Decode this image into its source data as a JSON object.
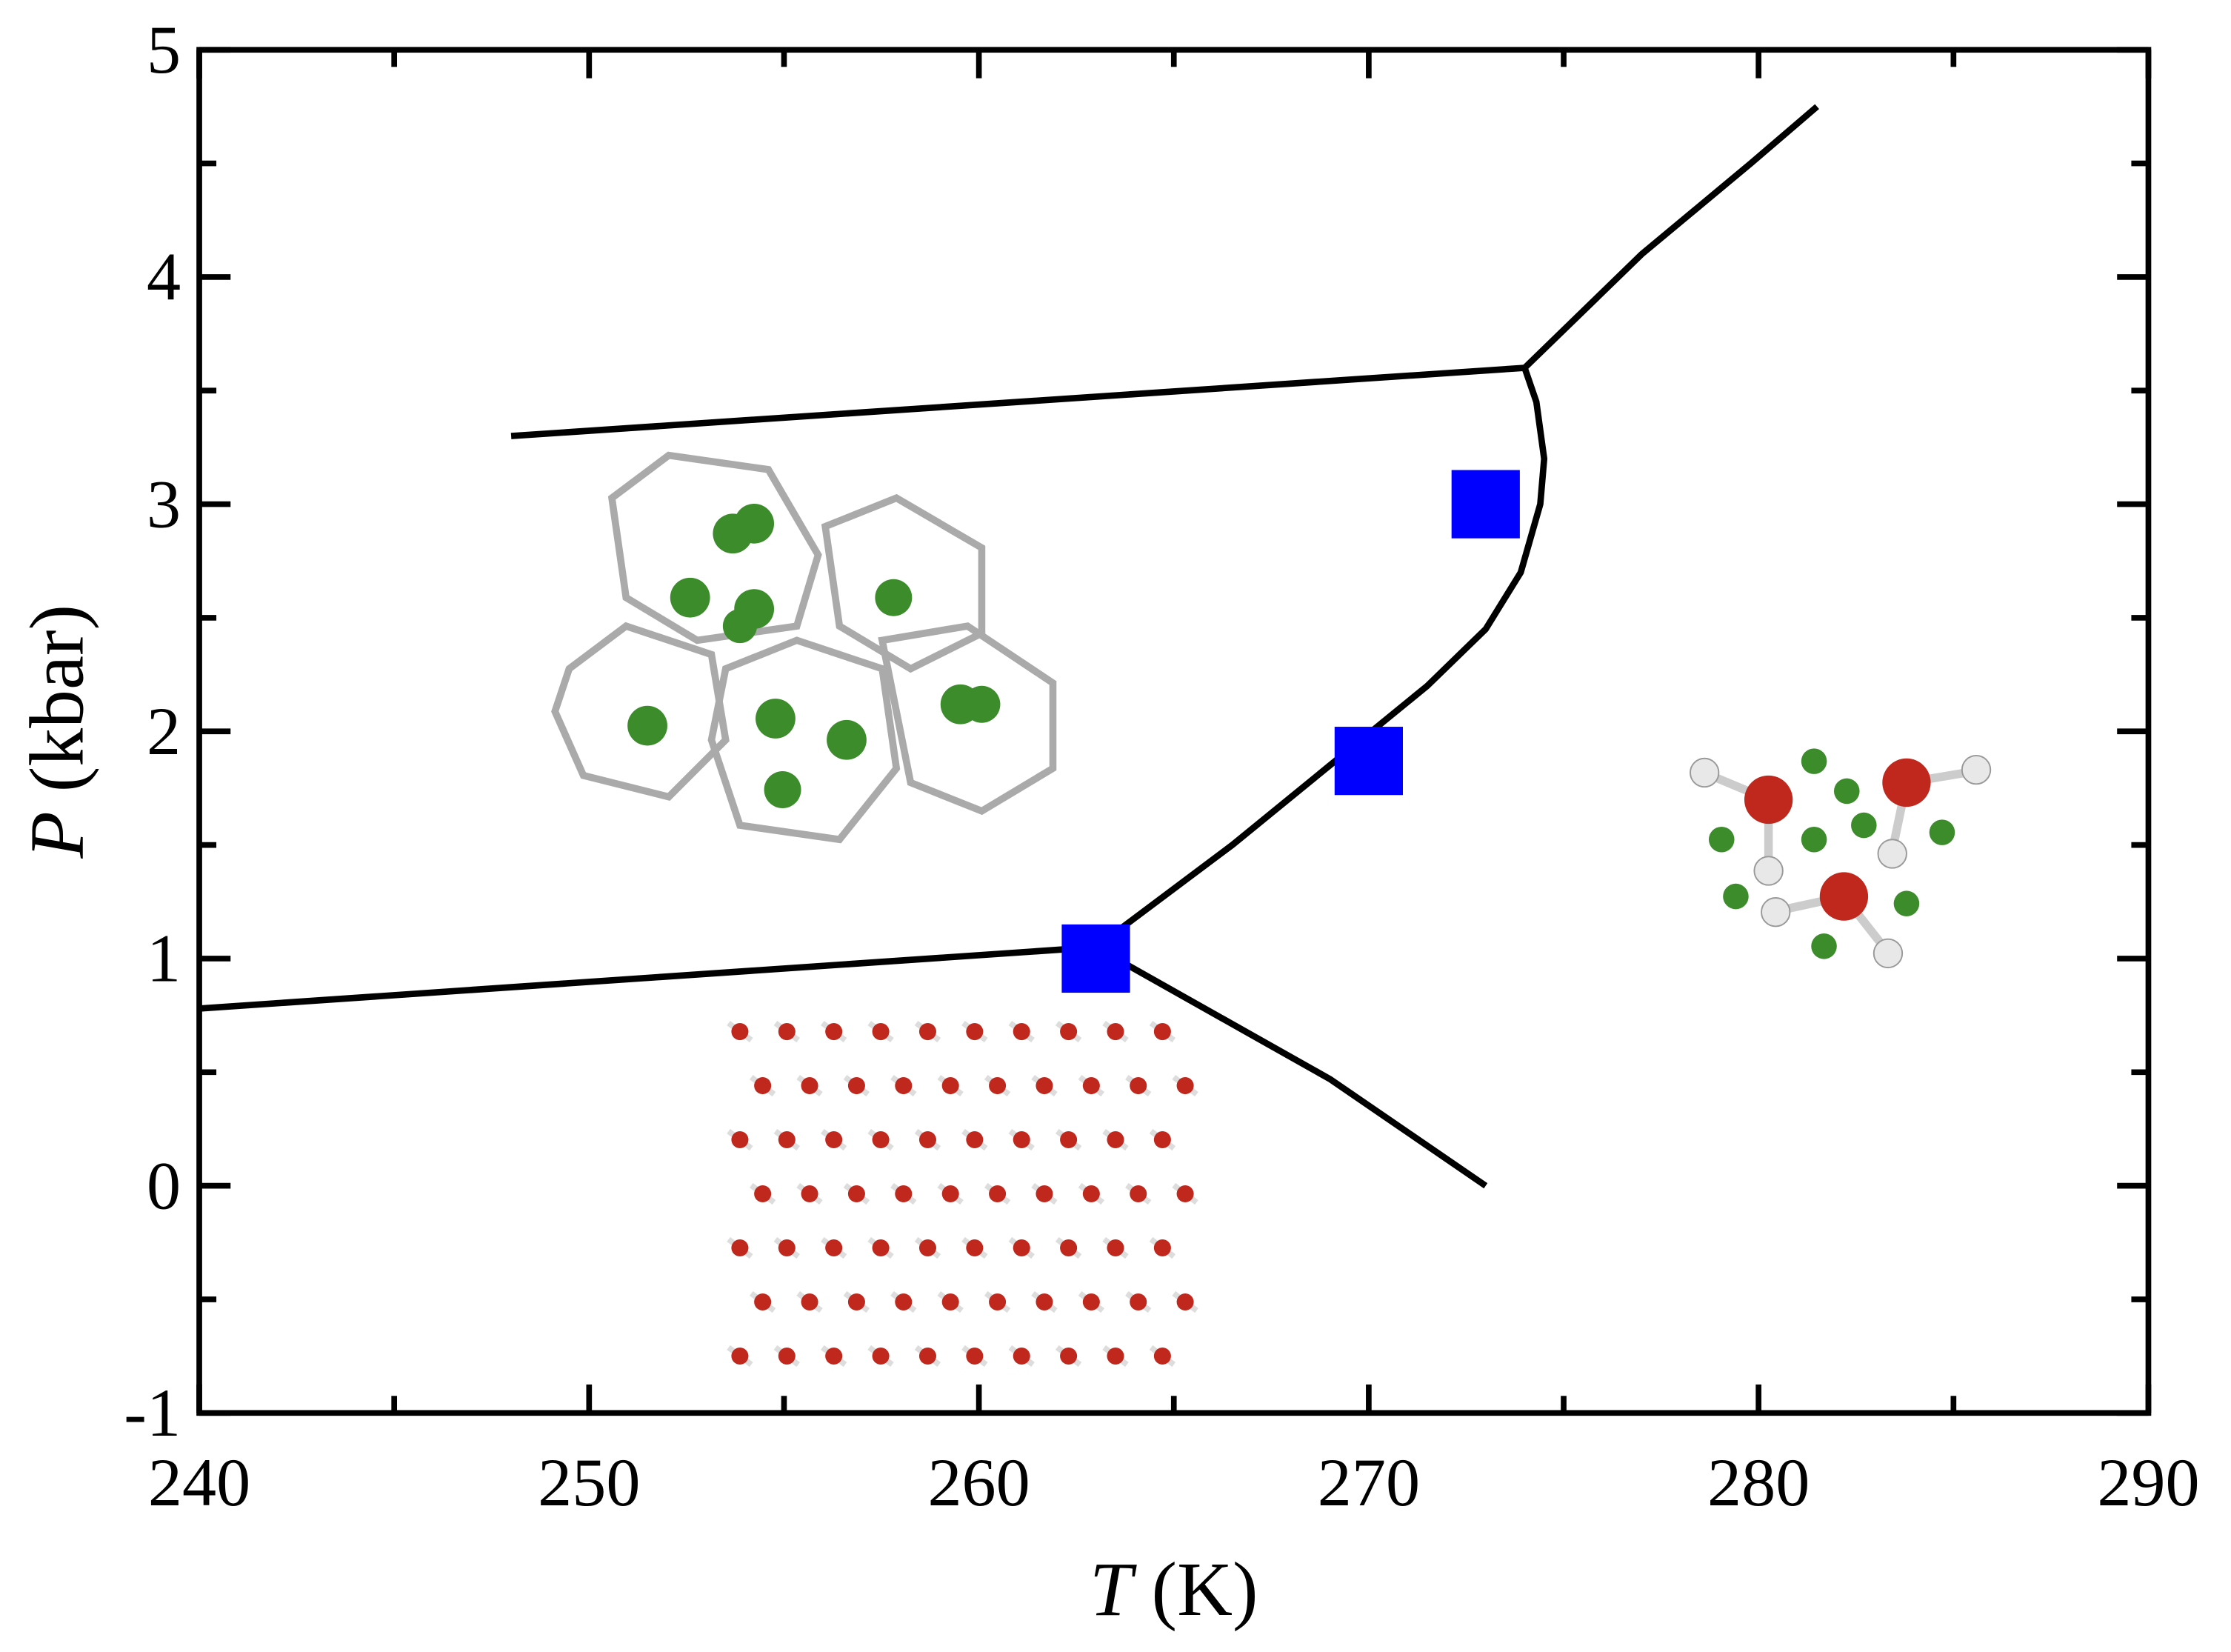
{
  "chart_data": {
    "type": "line",
    "xlabel": "T (K)",
    "ylabel": "P (kbar)",
    "xlim": [
      240,
      290
    ],
    "ylim": [
      -1,
      5
    ],
    "xticks": [
      240,
      250,
      260,
      270,
      280,
      290
    ],
    "yticks": [
      -1,
      0,
      1,
      2,
      3,
      4,
      5
    ],
    "xminorticks": [
      245,
      255,
      265,
      275,
      285
    ],
    "yminorticks": [
      -0.5,
      0.5,
      1.5,
      2.5,
      3.5,
      4.5
    ],
    "series": [
      {
        "color": "#000000",
        "style": "line",
        "x": [
          248,
          274
        ],
        "values": [
          3.3,
          3.6
        ]
      },
      {
        "color": "#000000",
        "style": "line",
        "x": [
          274,
          277,
          279.8,
          281.5
        ],
        "values": [
          3.6,
          4.1,
          4.5,
          4.75
        ]
      },
      {
        "color": "#000000",
        "style": "line",
        "x": [
          263,
          266.5,
          269,
          271.5,
          273,
          273.9,
          274.4,
          274.5,
          274.3,
          274
        ],
        "values": [
          1.05,
          1.5,
          1.85,
          2.2,
          2.45,
          2.7,
          3.0,
          3.2,
          3.45,
          3.6
        ]
      },
      {
        "color": "#000000",
        "style": "line",
        "x": [
          240,
          263
        ],
        "values": [
          0.78,
          1.05
        ]
      },
      {
        "color": "#000000",
        "style": "line",
        "x": [
          263,
          269,
          273
        ],
        "values": [
          1.05,
          0.47,
          0
        ]
      },
      {
        "color": "#0000ff",
        "style": "square",
        "x": [
          263,
          270,
          273
        ],
        "values": [
          1.0,
          1.87,
          3.0
        ]
      }
    ]
  }
}
